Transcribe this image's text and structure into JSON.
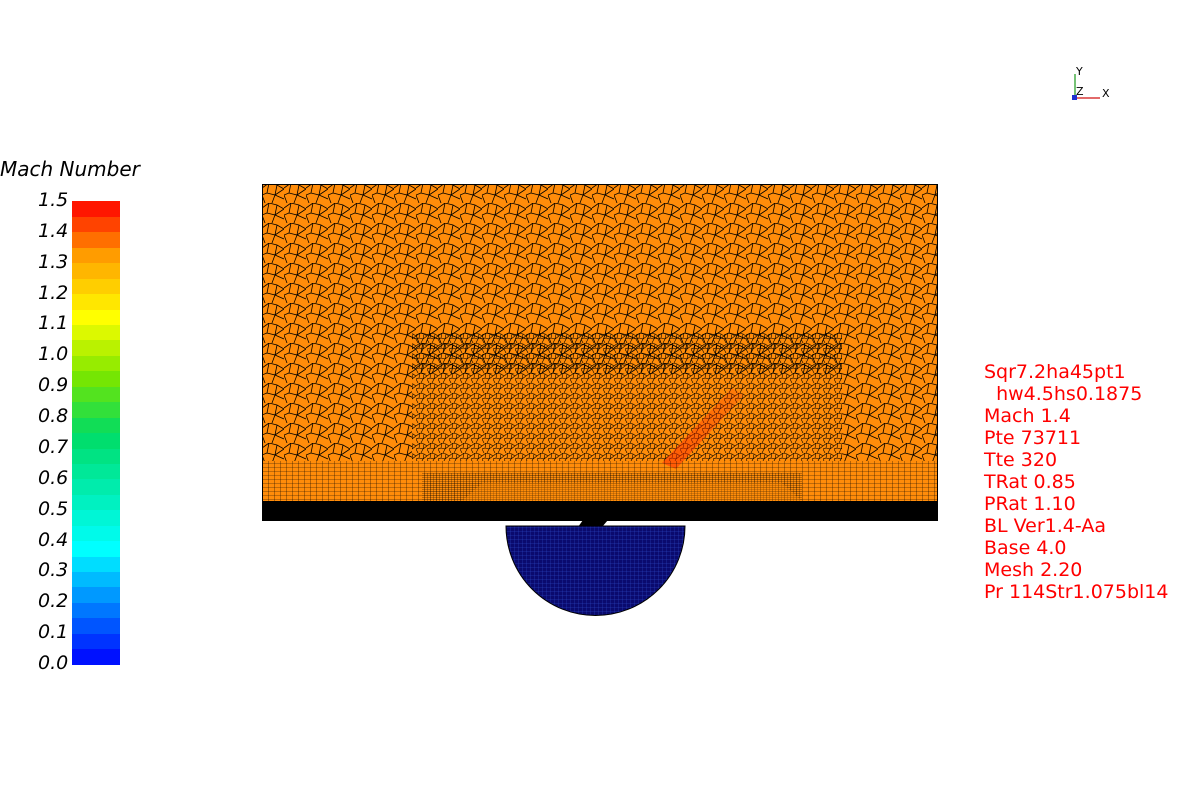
{
  "legend": {
    "title": "Mach Number",
    "ticks": [
      "1.5",
      "1.4",
      "1.3",
      "1.2",
      "1.1",
      "1.0",
      "0.9",
      "0.8",
      "0.7",
      "0.6",
      "0.5",
      "0.4",
      "0.3",
      "0.2",
      "0.1",
      "0.0"
    ],
    "min": 0.0,
    "max": 1.5
  },
  "axes": {
    "y": "Y",
    "z": "Z",
    "x": "X"
  },
  "info_lines": [
    "Sqr7.2ha45pt1",
    "  hw4.5hs0.1875",
    "Mach 1.4",
    "Pte 73711",
    "Tte 320",
    "TRat 0.85",
    "PRat 1.10",
    "BL Ver1.4-Aa",
    "Base 4.0",
    "Mesh 2.20",
    "Pr 114Str1.075bl14"
  ],
  "colors": {
    "domain_fill": "#ff8c0a",
    "mesh_lines": "#000000",
    "plenum_fill": "#0a0a6e",
    "info_text": "#ff0000",
    "shock_tint": "#ff3a00"
  }
}
